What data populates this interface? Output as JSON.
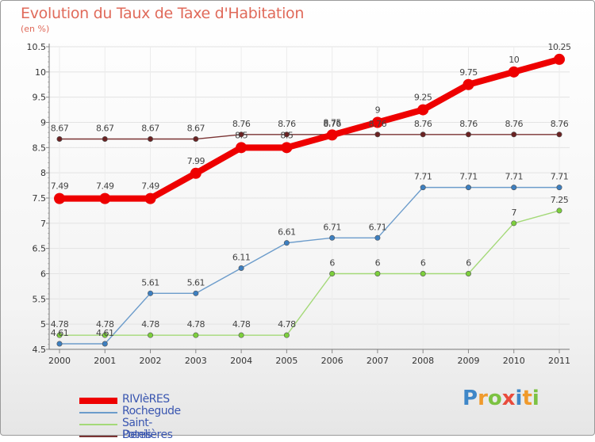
{
  "title": "Evolution du Taux de Taxe d'Habitation",
  "subtitle": "(en %)",
  "brand": {
    "letters": [
      "P",
      "r",
      "o",
      "x",
      "i",
      "t",
      "i"
    ],
    "colors": [
      "#3f87c8",
      "#f09a2c",
      "#7cc242",
      "#e94b3c",
      "#3f87c8",
      "#f09a2c",
      "#7cc242"
    ]
  },
  "chart_data": {
    "type": "line",
    "x": [
      2000,
      2001,
      2002,
      2003,
      2004,
      2005,
      2006,
      2007,
      2008,
      2009,
      2010,
      2011
    ],
    "x_tick_labels": [
      "2000",
      "2001",
      "2002",
      "2003",
      "2004",
      "2005",
      "2006",
      "2007",
      "2008",
      "2009",
      "2010",
      "2011"
    ],
    "ylim": [
      4.5,
      10.5
    ],
    "y_ticks": [
      4.5,
      5,
      5.5,
      6,
      6.5,
      7,
      7.5,
      8,
      8.5,
      9,
      9.5,
      10,
      10.5
    ],
    "y_tick_labels": [
      "4.5",
      "5",
      "5.5",
      "6",
      "6.5",
      "7",
      "7.5",
      "8",
      "8.5",
      "9",
      "9.5",
      "10",
      "10.5"
    ],
    "grid": true,
    "legend_position": "bottom-left",
    "series": [
      {
        "name": "RIVIèRES",
        "color": "#ee0000",
        "values": [
          7.49,
          7.49,
          7.49,
          7.99,
          8.5,
          8.5,
          8.75,
          9,
          9.25,
          9.75,
          10,
          10.25
        ],
        "labels": [
          "7.49",
          "7.49",
          "7.49",
          "7.99",
          "8.5",
          "8.5",
          "8.75",
          "9",
          "9.25",
          "9.75",
          "10",
          "10.25"
        ]
      },
      {
        "name": "Rochegude",
        "color": "#6c9ccb",
        "values": [
          4.61,
          4.61,
          5.61,
          5.61,
          6.11,
          6.61,
          6.71,
          6.71,
          7.71,
          7.71,
          7.71,
          7.71
        ],
        "labels": [
          "4.61",
          "4.61",
          "5.61",
          "5.61",
          "6.11",
          "6.61",
          "6.71",
          "6.71",
          "7.71",
          "7.71",
          "7.71",
          "7.71"
        ]
      },
      {
        "name": "Saint-Denis",
        "color": "#a4d978",
        "values": [
          4.78,
          4.78,
          4.78,
          4.78,
          4.78,
          4.78,
          6,
          6,
          6,
          6,
          7,
          7.25
        ],
        "labels": [
          "4.78",
          "4.78",
          "4.78",
          "4.78",
          "4.78",
          "4.78",
          "6",
          "6",
          "6",
          "6",
          "7",
          "7.25"
        ]
      },
      {
        "name": "Potelières",
        "color": "#7a3333",
        "values": [
          8.67,
          8.67,
          8.67,
          8.67,
          8.76,
          8.76,
          8.76,
          8.76,
          8.76,
          8.76,
          8.76,
          8.76
        ],
        "labels": [
          "8.67",
          "8.67",
          "8.67",
          "8.67",
          "8.76",
          "8.76",
          "8.76",
          "8.76",
          "8.76",
          "8.76",
          "8.76",
          "8.76"
        ]
      }
    ]
  }
}
